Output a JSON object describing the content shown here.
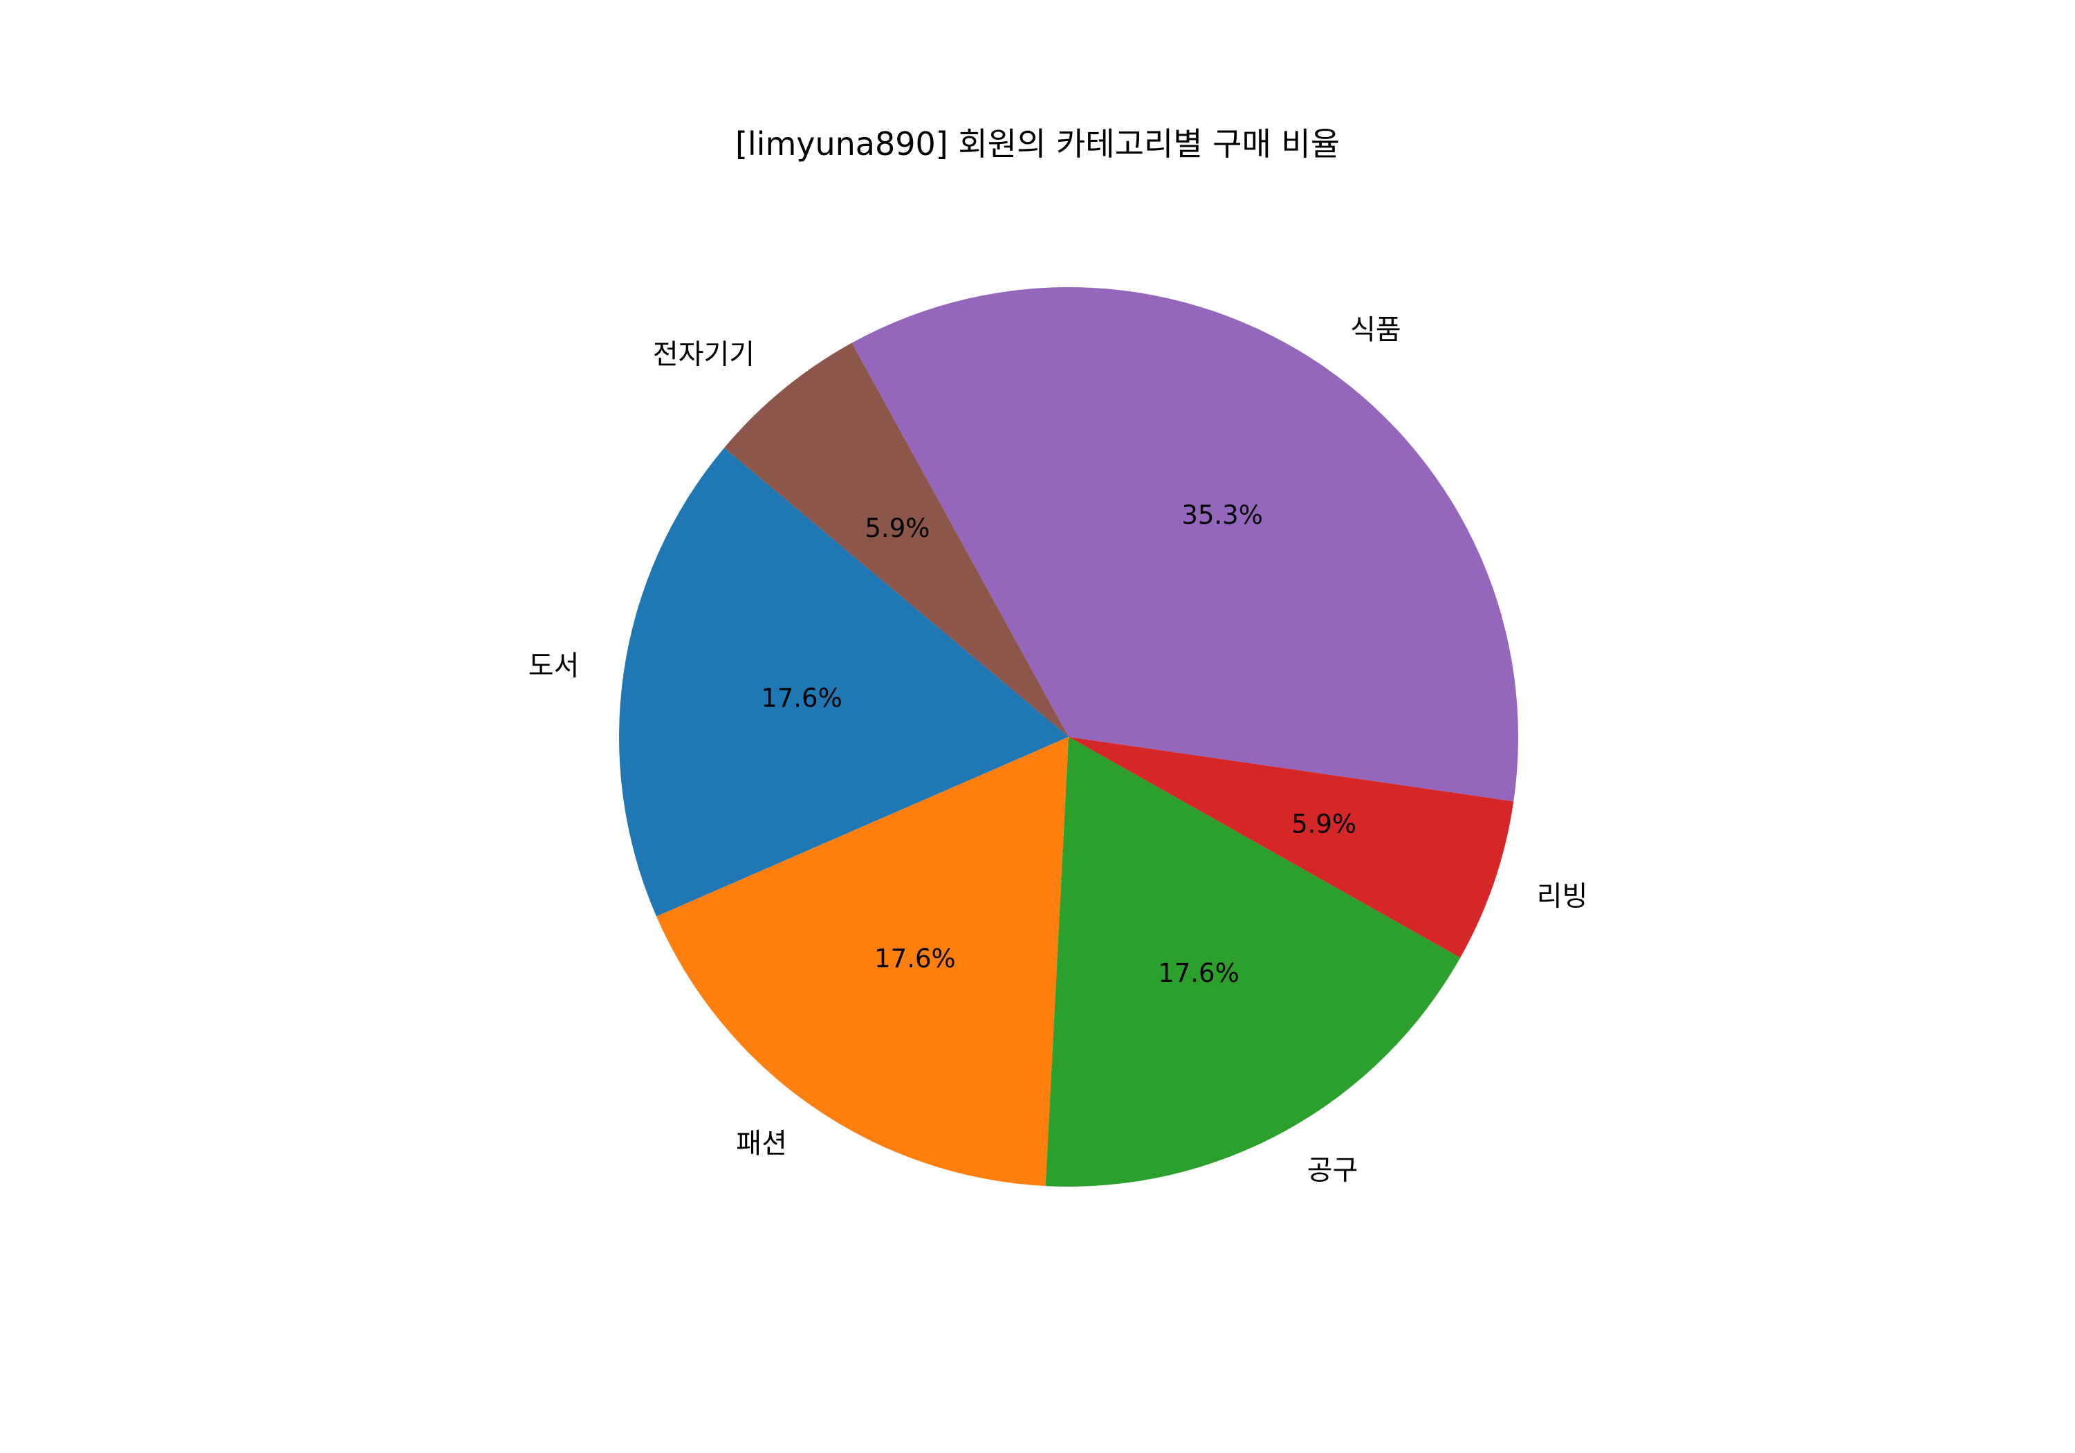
{
  "chart_data": {
    "type": "pie",
    "title": "[limyuna890] 회원의 카테고리별 구매 비율",
    "categories": [
      "도서",
      "패션",
      "공구",
      "리빙",
      "식품",
      "전자기기"
    ],
    "values": [
      3,
      3,
      3,
      1,
      6,
      1
    ],
    "percent_labels": [
      "17.6%",
      "17.6%",
      "17.6%",
      "5.9%",
      "35.3%",
      "5.9%"
    ],
    "colors": [
      "#1f77b4",
      "#ff7f0e",
      "#2ca02c",
      "#d62728",
      "#9467bd",
      "#8c564b"
    ],
    "start_angle": 140,
    "direction": "counterclockwise",
    "legend": "none"
  }
}
